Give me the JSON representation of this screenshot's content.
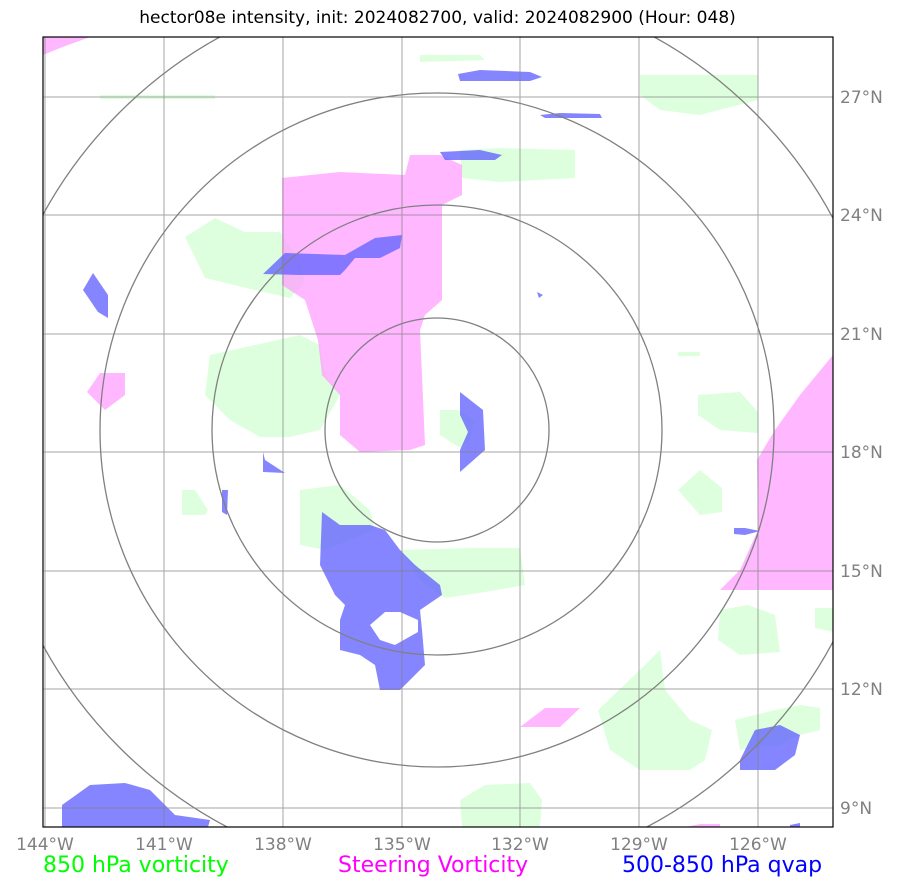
{
  "title": "hector08e intensity, init: 2024082700, valid: 2024082900 (Hour: 048)",
  "legend": [
    {
      "label": "850 hPa vorticity",
      "color": "#00ff00"
    },
    {
      "label": "Steering Vorticity",
      "color": "#ff00ff"
    },
    {
      "label": "500-850 hPa qvap",
      "color": "#0000ff"
    }
  ],
  "latitude_labels": [
    "27°N",
    "24°N",
    "21°N",
    "18°N",
    "15°N",
    "12°N",
    "9°N"
  ],
  "longitude_labels": [
    "144°W",
    "141°W",
    "138°W",
    "135°W",
    "132°W",
    "129°W",
    "126°W"
  ],
  "map_data": {
    "extent": {
      "lon_min": -144,
      "lon_max": -124.2,
      "lat_min": 8.5,
      "lat_max": 28.5
    },
    "storm_center": {
      "lon": -134,
      "lat": 18.5
    },
    "range_rings_deg": [
      2.8,
      5.6,
      8.4,
      11.2
    ],
    "colors": {
      "vort850": "#ccffcc",
      "steering": "#ff99ff",
      "qvap": "#6666ff",
      "overlap_steer_qvap": "#6633ff",
      "grid": "#808080",
      "rings": "#808080"
    }
  }
}
